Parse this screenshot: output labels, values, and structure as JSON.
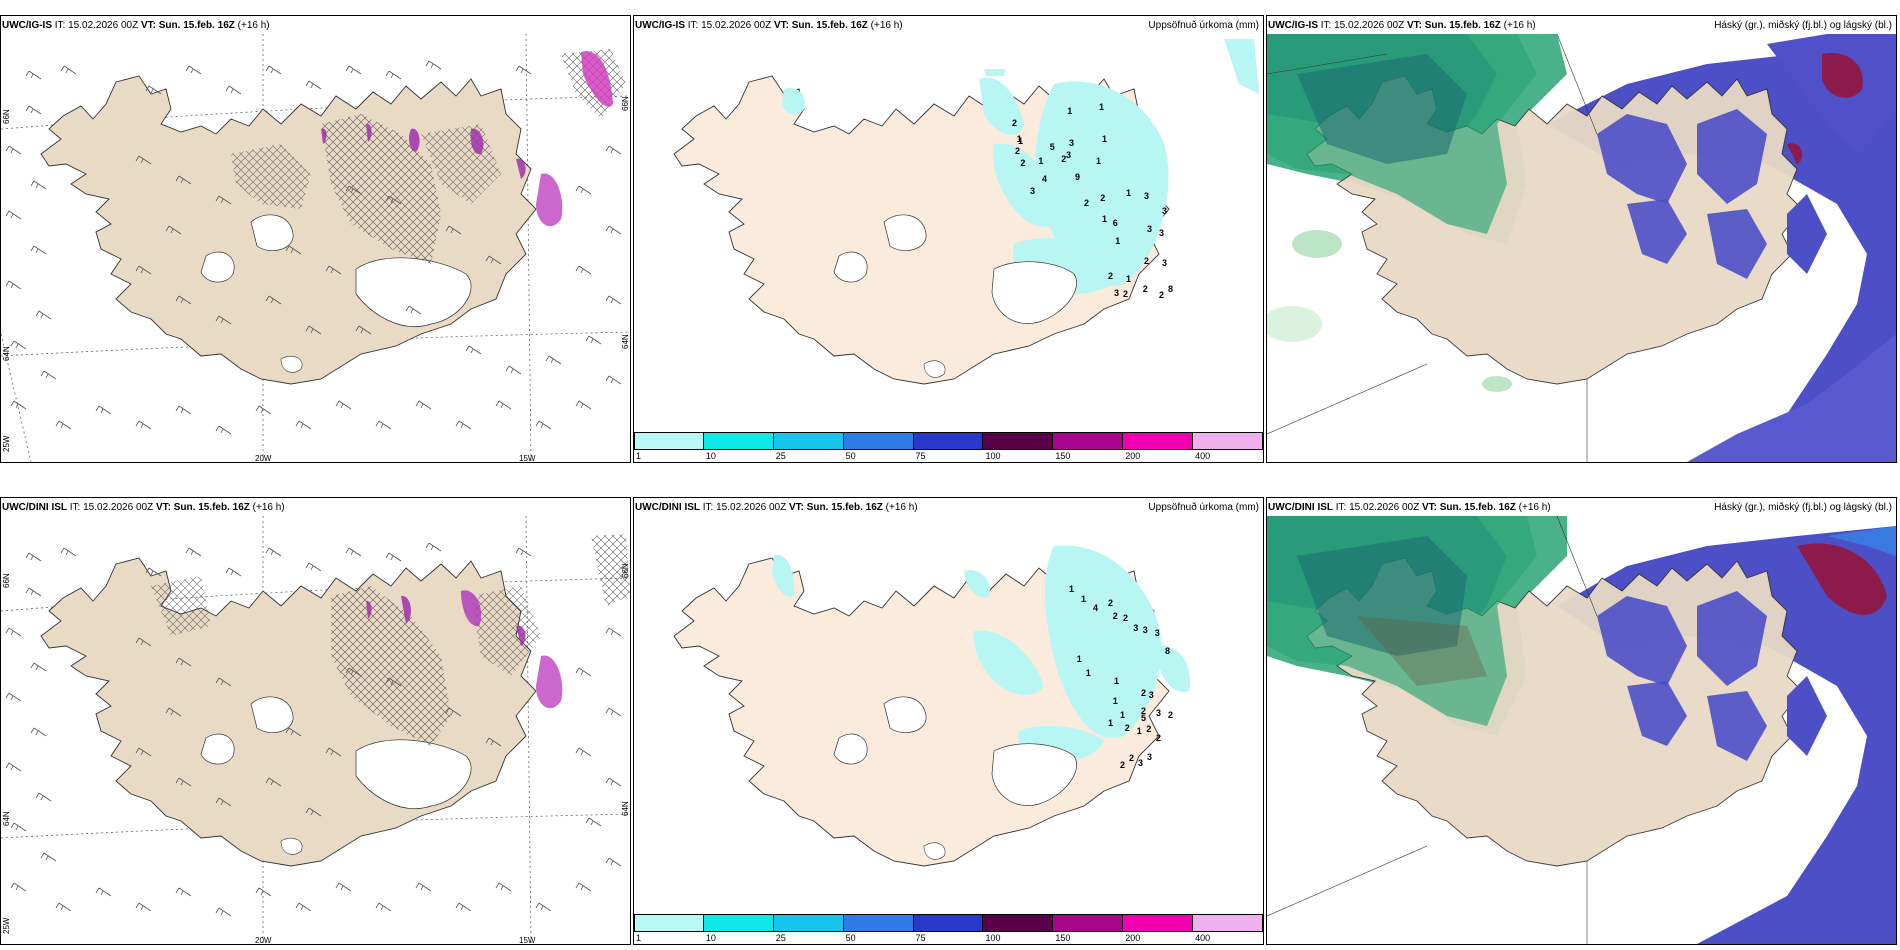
{
  "panels": [
    {
      "id": "wind-top",
      "model": "UWC/IG-IS",
      "it_label": "IT:",
      "it_value": "15.02.2026 00Z",
      "vt_label": "VT:",
      "vt_value": "Sun. 15.feb. 16Z",
      "lead": "(+16 h)",
      "right_title": "",
      "axis": {
        "lat_left": [
          "66N",
          "64N",
          "25W"
        ],
        "lat_right": [
          "66N",
          "64N"
        ],
        "lon_bottom": [
          "20W",
          "15W"
        ]
      }
    },
    {
      "id": "precip-top",
      "model": "UWC/IG-IS",
      "it_label": "IT:",
      "it_value": "15.02.2026 00Z",
      "vt_label": "VT:",
      "vt_value": "Sun. 15.feb. 16Z",
      "lead": "(+16 h)",
      "right_title": "Uppsöfnuð úrkoma (mm)",
      "numbers": [
        "1",
        "1",
        "2",
        "1",
        "2",
        "2",
        "1",
        "1",
        "5",
        "3",
        "2",
        "3",
        "4",
        "3",
        "9",
        "1",
        "1",
        "2",
        "1",
        "2",
        "1",
        "1",
        "6",
        "3",
        "3",
        "3",
        "3",
        "2",
        "1",
        "2",
        "2",
        "3",
        "8",
        "2",
        "2",
        "3"
      ]
    },
    {
      "id": "cloud-top",
      "model": "UWC/IG-IS",
      "it_label": "IT:",
      "it_value": "15.02.2026 00Z",
      "vt_label": "VT:",
      "vt_value": "Sun. 15.feb. 16Z",
      "lead": "(+16 h)",
      "right_title": "Háský (gr.), miðský (fj.bl.) og lágský (bl.)"
    },
    {
      "id": "wind-bottom",
      "model": "UWC/DINI ISL",
      "it_label": "IT:",
      "it_value": "15.02.2026 00Z",
      "vt_label": "VT:",
      "vt_value": "Sun. 15.feb. 16Z",
      "lead": "(+16 h)",
      "right_title": "",
      "axis": {
        "lat_left": [
          "66N",
          "64N",
          "25W"
        ],
        "lat_right": [
          "66N",
          "64N"
        ],
        "lon_bottom": [
          "20W",
          "15W"
        ]
      }
    },
    {
      "id": "precip-bottom",
      "model": "UWC/DINI ISL",
      "it_label": "IT:",
      "it_value": "15.02.2026 00Z",
      "vt_label": "VT:",
      "vt_value": "Sun. 15.feb. 16Z",
      "lead": "(+16 h)",
      "right_title": "Uppsöfnuð úrkoma (mm)",
      "numbers": [
        "1",
        "1",
        "4",
        "2",
        "2",
        "2",
        "3",
        "3",
        "3",
        "8",
        "1",
        "1",
        "1",
        "1",
        "1",
        "2",
        "2",
        "5",
        "3",
        "3",
        "1",
        "2",
        "1",
        "2",
        "2",
        "2",
        "3",
        "3",
        "2",
        "2"
      ]
    },
    {
      "id": "cloud-bottom",
      "model": "UWC/DINI ISL",
      "it_label": "IT:",
      "it_value": "15.02.2026 00Z",
      "vt_label": "VT:",
      "vt_value": "Sun. 15.feb. 16Z",
      "lead": "(+16 h)",
      "right_title": "Háský (gr.), miðský (fj.bl.) og lágský (bl.)"
    }
  ],
  "colorbar": {
    "labels": [
      "1",
      "10",
      "25",
      "50",
      "75",
      "100",
      "150",
      "200",
      "400"
    ],
    "colors": [
      "#b8f8f4",
      "#10e8e8",
      "#18c4ec",
      "#2f7ce8",
      "#2838c8",
      "#5a0048",
      "#a8068c",
      "#f000b0",
      "#f0b0f0"
    ]
  },
  "colors": {
    "land": "#e9dac6",
    "land_precip": "#faebdd",
    "precip_light": "#b8f6f4",
    "cloud_high": "#2aa476",
    "cloud_mid": "#4d4fc6",
    "cloud_low": "#3a7ae0",
    "cloud_dark": "#8c1a4a",
    "sea": "#ffffff"
  }
}
